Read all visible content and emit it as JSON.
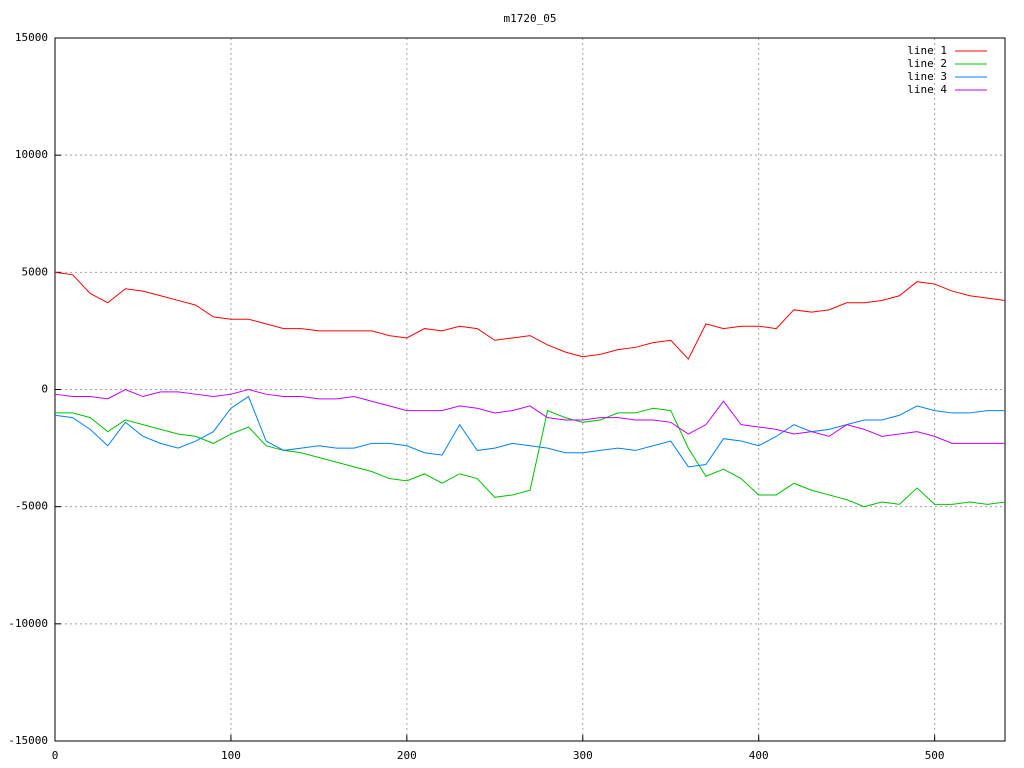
{
  "chart_data": {
    "type": "line",
    "title": "m1720_05",
    "x": [
      0,
      10,
      20,
      30,
      40,
      50,
      60,
      70,
      80,
      90,
      100,
      110,
      120,
      130,
      140,
      150,
      160,
      170,
      180,
      190,
      200,
      210,
      220,
      230,
      240,
      250,
      260,
      270,
      280,
      290,
      300,
      310,
      320,
      330,
      340,
      350,
      360,
      370,
      380,
      390,
      400,
      410,
      420,
      430,
      440,
      450,
      460,
      470,
      480,
      490,
      500,
      510,
      520,
      530,
      540
    ],
    "series": [
      {
        "name": "line 1",
        "color": "#ff0000",
        "values": [
          5000,
          4900,
          4100,
          3700,
          4300,
          4200,
          4000,
          3800,
          3600,
          3100,
          3000,
          3000,
          2800,
          2600,
          2600,
          2500,
          2500,
          2500,
          2500,
          2300,
          2200,
          2600,
          2500,
          2700,
          2600,
          2100,
          2200,
          2300,
          1900,
          1600,
          1400,
          1500,
          1700,
          1800,
          2000,
          2100,
          1300,
          2800,
          2600,
          2700,
          2700,
          2600,
          3400,
          3300,
          3400,
          3700,
          3700,
          3800,
          4000,
          4600,
          4500,
          4200,
          4000,
          3900,
          3800
        ]
      },
      {
        "name": "line 2",
        "color": "#00c000",
        "values": [
          -1000,
          -1000,
          -1200,
          -1800,
          -1300,
          -1500,
          -1700,
          -1900,
          -2000,
          -2300,
          -1900,
          -1600,
          -2400,
          -2600,
          -2700,
          -2900,
          -3100,
          -3300,
          -3500,
          -3800,
          -3900,
          -3600,
          -4000,
          -3600,
          -3800,
          -4600,
          -4500,
          -4300,
          -900,
          -1200,
          -1400,
          -1300,
          -1000,
          -1000,
          -800,
          -900,
          -2500,
          -3700,
          -3400,
          -3800,
          -4500,
          -4500,
          -4000,
          -4300,
          -4500,
          -4700,
          -5000,
          -4800,
          -4900,
          -4200,
          -4900,
          -4900,
          -4800,
          -4900,
          -4800
        ]
      },
      {
        "name": "line 3",
        "color": "#0080ff",
        "values": [
          -1100,
          -1200,
          -1700,
          -2400,
          -1400,
          -2000,
          -2300,
          -2500,
          -2200,
          -1800,
          -800,
          -300,
          -2200,
          -2600,
          -2500,
          -2400,
          -2500,
          -2500,
          -2300,
          -2300,
          -2400,
          -2700,
          -2800,
          -1500,
          -2600,
          -2500,
          -2300,
          -2400,
          -2500,
          -2700,
          -2700,
          -2600,
          -2500,
          -2600,
          -2400,
          -2200,
          -3300,
          -3200,
          -2100,
          -2200,
          -2400,
          -2000,
          -1500,
          -1800,
          -1700,
          -1500,
          -1300,
          -1300,
          -1100,
          -700,
          -900,
          -1000,
          -1000,
          -900,
          -900
        ]
      },
      {
        "name": "line 4",
        "color": "#c000ff",
        "values": [
          -200,
          -300,
          -300,
          -400,
          0,
          -300,
          -100,
          -100,
          -200,
          -300,
          -200,
          0,
          -200,
          -300,
          -300,
          -400,
          -400,
          -300,
          -500,
          -700,
          -900,
          -900,
          -900,
          -700,
          -800,
          -1000,
          -900,
          -700,
          -1200,
          -1300,
          -1300,
          -1200,
          -1200,
          -1300,
          -1300,
          -1400,
          -1900,
          -1500,
          -500,
          -1500,
          -1600,
          -1700,
          -1900,
          -1800,
          -2000,
          -1500,
          -1700,
          -2000,
          -1900,
          -1800,
          -2000,
          -2300,
          -2300,
          -2300,
          -2300
        ]
      }
    ],
    "xlim": [
      0,
      540
    ],
    "xticks": [
      0,
      100,
      200,
      300,
      400,
      500
    ],
    "ylim": [
      -15000,
      15000
    ],
    "yticks": [
      -15000,
      -10000,
      -5000,
      0,
      5000,
      10000,
      15000
    ],
    "grid": true,
    "legend": "top-right"
  }
}
